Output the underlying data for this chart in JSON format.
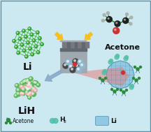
{
  "bg_color": "#cce8f0",
  "li_mesh_color": "#3db83d",
  "li_mesh_node": "#2da02d",
  "lih_green": "#5ab85a",
  "lih_pink": "#e8a8a8",
  "lih_pink2": "#f0c0c0",
  "acetone_black": "#202020",
  "acetone_green": "#2a8a3a",
  "acetone_gray": "#b0b0b0",
  "acetone_red": "#cc3333",
  "mill_silver": "#a0a8b0",
  "mill_dark": "#606870",
  "mill_top": "#787880",
  "ball_dark": "#484848",
  "ball_blue": "#90b8d0",
  "ball_red": "#cc3333",
  "arrow_yellow": "#f5c020",
  "arrow_blue": "#88aac8",
  "beam_red": "#e87878",
  "react_blue": "#88c4e0",
  "react_border": "#5090b0",
  "h2_teal": "#50c0a8",
  "legend_acetone": "#2a8a3a",
  "legend_h2": "#50c0a8",
  "legend_li": "#88c4e0",
  "border_color": "#6090a8",
  "labels": {
    "li": "Li",
    "lih": "LiH",
    "acetone": "Acetone",
    "leg_acetone": "Acetone",
    "leg_h2": "H",
    "leg_h2sub": "2",
    "leg_li": "Li"
  }
}
